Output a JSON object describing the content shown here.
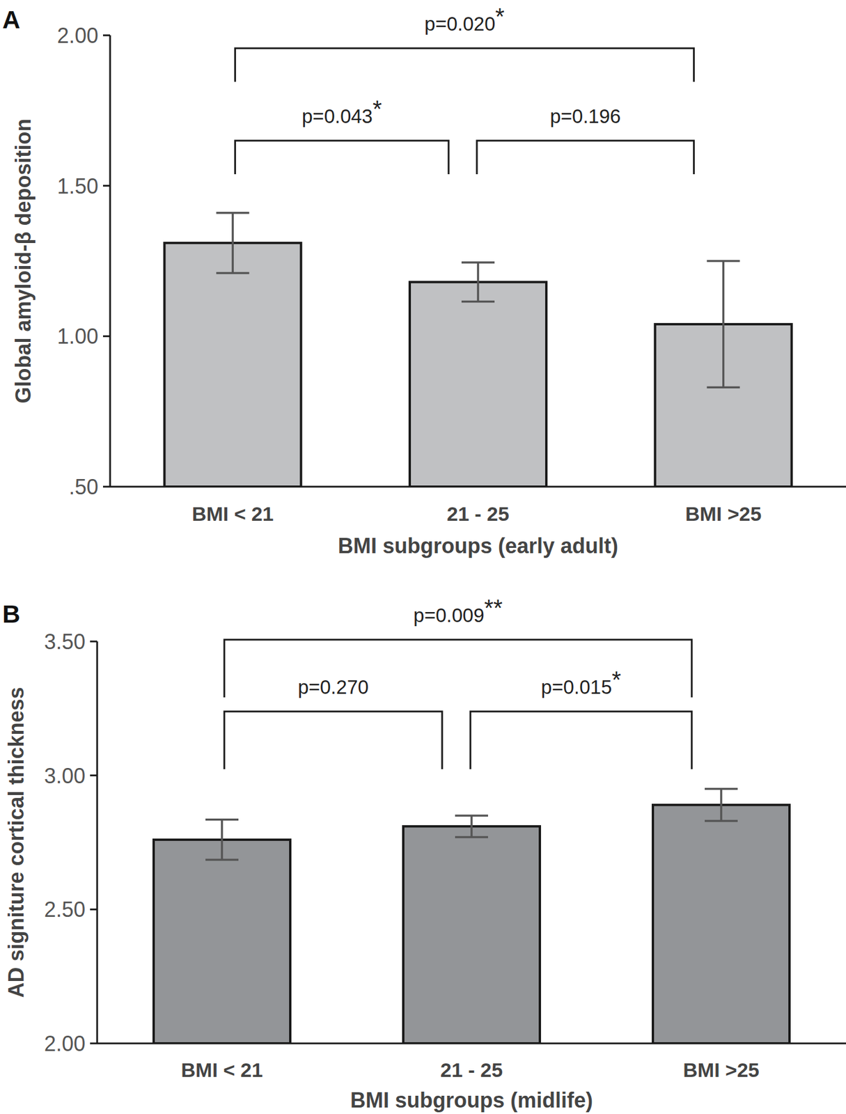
{
  "chart_data": [
    {
      "type": "bar",
      "title": "A",
      "x_label": "BMI subgroups (early adult)",
      "y_label": "Global amyloid-β deposition",
      "categories": [
        "BMI < 21",
        "21 - 25",
        "BMI >25"
      ],
      "values": [
        1.31,
        1.18,
        1.04
      ],
      "errors": [
        0.1,
        0.065,
        0.21
      ],
      "color": "#c0c1c3",
      "ylim": [
        0.5,
        2.0
      ],
      "yticks": [
        {
          "value": 0.5,
          "label": ".50"
        },
        {
          "value": 1.0,
          "label": "1.00"
        },
        {
          "value": 1.5,
          "label": "1.50"
        },
        {
          "value": 2.0,
          "label": "2.00"
        }
      ],
      "annotations": [
        {
          "text": "p=0.020*",
          "from": 0,
          "to": 2
        },
        {
          "text": "p=0.043*",
          "from": 0,
          "to": 1
        },
        {
          "text": "p=0.196",
          "from": 1,
          "to": 2
        }
      ]
    },
    {
      "type": "bar",
      "title": "B",
      "x_label": "BMI subgroups (midlife)",
      "y_label": "AD signiture cortical thickness",
      "categories": [
        "BMI < 21",
        "21 - 25",
        "BMI >25"
      ],
      "values": [
        2.76,
        2.81,
        2.89
      ],
      "errors": [
        0.075,
        0.04,
        0.06
      ],
      "color": "#939598",
      "ylim": [
        2.0,
        3.5
      ],
      "yticks": [
        {
          "value": 2.0,
          "label": "2.00"
        },
        {
          "value": 2.5,
          "label": "2.50"
        },
        {
          "value": 3.0,
          "label": "3.00"
        },
        {
          "value": 3.5,
          "label": "3.50"
        }
      ],
      "annotations": [
        {
          "text": "p=0.009**",
          "from": 0,
          "to": 2
        },
        {
          "text": "p=0.270",
          "from": 0,
          "to": 1
        },
        {
          "text": "p=0.015*",
          "from": 1,
          "to": 2
        }
      ]
    }
  ]
}
